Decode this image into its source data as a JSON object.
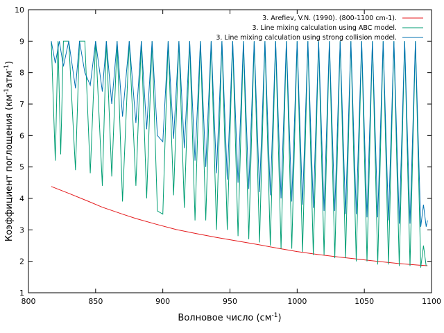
{
  "chart_data": {
    "type": "line",
    "xlabel": "Волновое число (см",
    "xlabel_sup": "-1",
    "xlabel_end": ")",
    "ylabel_parts": [
      "Коэффициент поглощения (км",
      "-1",
      "атм",
      "-1",
      ")"
    ],
    "xlim": [
      800,
      1100
    ],
    "ylim": [
      1,
      10
    ],
    "xticks": [
      800,
      850,
      900,
      950,
      1000,
      1050,
      1100
    ],
    "yticks": [
      1,
      2,
      3,
      4,
      5,
      6,
      7,
      8,
      9,
      10
    ],
    "grid": false,
    "legend_position": "top-right",
    "series": [
      {
        "name": "3. Arefiev, V.N. (1990). (800-1100 cm-1).",
        "color": "#e41a1c",
        "x": [
          817,
          830,
          845,
          855,
          870,
          880,
          895,
          910,
          925,
          940,
          955,
          970,
          985,
          1000,
          1015,
          1030,
          1045,
          1060,
          1075,
          1090,
          1097
        ],
        "y": [
          4.38,
          4.16,
          3.9,
          3.72,
          3.5,
          3.36,
          3.18,
          3.01,
          2.88,
          2.76,
          2.65,
          2.54,
          2.42,
          2.31,
          2.22,
          2.14,
          2.07,
          2.0,
          1.93,
          1.88,
          1.86
        ]
      },
      {
        "name": "3. Line mixing calculation using ABC model.",
        "color": "#009e73",
        "x": [
          817,
          820,
          822,
          824,
          826,
          830,
          835,
          838,
          842,
          846,
          850,
          855,
          858,
          862,
          866,
          870,
          875,
          880,
          884,
          888,
          892,
          896,
          900,
          904,
          908,
          912,
          916,
          920,
          924,
          928,
          932,
          936,
          940,
          944,
          948,
          952,
          956,
          960,
          964,
          968,
          972,
          976,
          980,
          984,
          988,
          992,
          996,
          1000,
          1004,
          1008,
          1012,
          1016,
          1020,
          1024,
          1028,
          1032,
          1036,
          1040,
          1044,
          1048,
          1052,
          1056,
          1060,
          1064,
          1068,
          1072,
          1076,
          1080,
          1084,
          1088,
          1092,
          1094,
          1096
        ],
        "y": [
          9.0,
          5.2,
          9.0,
          5.4,
          9.0,
          9.0,
          4.9,
          9.0,
          9.0,
          4.8,
          9.0,
          4.4,
          9.0,
          4.7,
          9.0,
          3.9,
          9.0,
          4.4,
          9.0,
          4.0,
          9.0,
          3.6,
          3.5,
          9.0,
          4.1,
          9.0,
          3.7,
          9.0,
          3.3,
          9.0,
          3.3,
          9.0,
          3.0,
          9.0,
          3.0,
          9.0,
          2.8,
          9.0,
          2.7,
          9.0,
          2.6,
          9.0,
          2.5,
          9.0,
          2.4,
          9.0,
          2.4,
          9.0,
          2.3,
          9.0,
          2.2,
          9.0,
          2.2,
          9.0,
          2.1,
          9.0,
          2.1,
          9.0,
          2.0,
          9.0,
          2.0,
          9.0,
          1.9,
          9.0,
          1.9,
          9.0,
          1.85,
          9.0,
          1.85,
          9.0,
          1.8,
          2.5,
          1.85
        ]
      },
      {
        "name": "3. Line mixing calculation using strong collision model.",
        "color": "#0072b2",
        "x": [
          817,
          820,
          823,
          826,
          830,
          835,
          838,
          842,
          846,
          850,
          855,
          858,
          862,
          866,
          870,
          875,
          880,
          884,
          888,
          892,
          896,
          900,
          904,
          908,
          912,
          916,
          920,
          924,
          928,
          932,
          936,
          940,
          944,
          948,
          952,
          956,
          960,
          964,
          968,
          972,
          976,
          980,
          984,
          988,
          992,
          996,
          1000,
          1004,
          1008,
          1012,
          1016,
          1020,
          1024,
          1028,
          1032,
          1036,
          1040,
          1044,
          1048,
          1052,
          1056,
          1060,
          1064,
          1068,
          1072,
          1076,
          1080,
          1084,
          1088,
          1092,
          1094,
          1096,
          1097
        ],
        "y": [
          9.0,
          8.3,
          9.0,
          8.2,
          9.0,
          7.5,
          9.0,
          8.0,
          7.6,
          9.0,
          7.4,
          9.0,
          7.0,
          9.0,
          6.6,
          9.0,
          6.4,
          9.0,
          6.2,
          9.0,
          6.0,
          5.8,
          9.0,
          5.9,
          9.0,
          5.6,
          9.0,
          5.2,
          9.0,
          5.0,
          9.0,
          4.8,
          9.0,
          4.6,
          9.0,
          4.5,
          9.0,
          4.3,
          9.0,
          4.2,
          9.0,
          4.1,
          9.0,
          4.0,
          9.0,
          3.9,
          9.0,
          3.8,
          9.0,
          3.7,
          9.0,
          3.6,
          9.0,
          3.6,
          9.0,
          3.5,
          9.0,
          3.5,
          9.0,
          3.4,
          9.0,
          3.4,
          9.0,
          3.3,
          9.0,
          3.2,
          9.0,
          3.2,
          9.0,
          3.1,
          3.8,
          3.1,
          3.3
        ]
      }
    ]
  }
}
